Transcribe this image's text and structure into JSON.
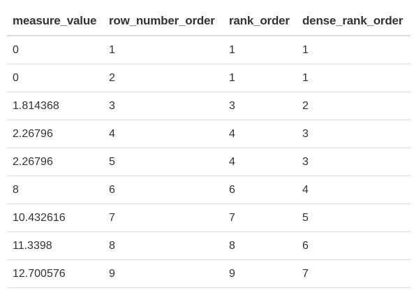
{
  "table": {
    "columns": [
      "measure_value",
      "row_number_order",
      "rank_order",
      "dense_rank_order"
    ],
    "rows": [
      [
        "0",
        "1",
        "1",
        "1"
      ],
      [
        "0",
        "2",
        "1",
        "1"
      ],
      [
        "1.814368",
        "3",
        "3",
        "2"
      ],
      [
        "2.26796",
        "4",
        "4",
        "3"
      ],
      [
        "2.26796",
        "5",
        "4",
        "3"
      ],
      [
        "8",
        "6",
        "6",
        "4"
      ],
      [
        "10.432616",
        "7",
        "7",
        "5"
      ],
      [
        "11.3398",
        "8",
        "8",
        "6"
      ],
      [
        "12.700576",
        "9",
        "9",
        "7"
      ]
    ]
  }
}
